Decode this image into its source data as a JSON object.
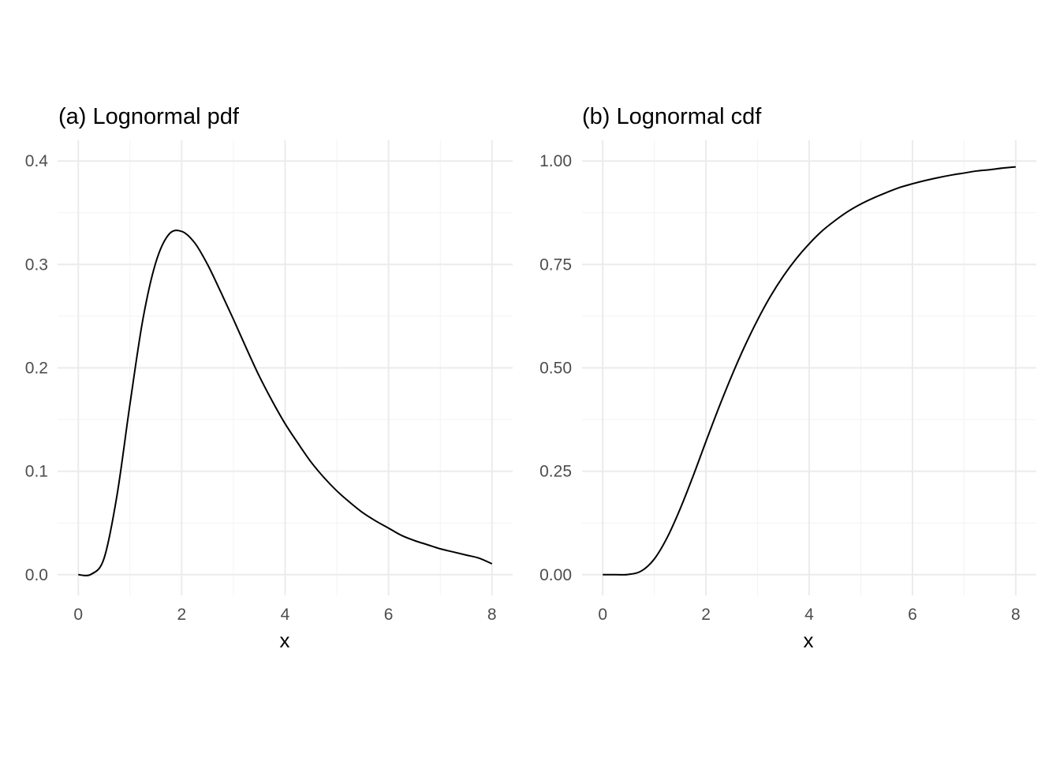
{
  "chart_data": [
    {
      "type": "line",
      "title": "(a) Lognormal pdf",
      "xlabel": "x",
      "ylabel": "",
      "xlim": [
        -0.4,
        8.4
      ],
      "ylim": [
        -0.02,
        0.42
      ],
      "x_ticks": [
        0,
        2,
        4,
        6,
        8
      ],
      "x_tick_labels": [
        "0",
        "2",
        "4",
        "6",
        "8"
      ],
      "y_ticks": [
        0,
        0.1,
        0.2,
        0.3,
        0.4
      ],
      "y_tick_labels": [
        "0.0",
        "0.1",
        "0.2",
        "0.3",
        "0.4"
      ],
      "grid": true,
      "series": [
        {
          "x": [
            0,
            0.25,
            0.5,
            0.75,
            1.0,
            1.25,
            1.5,
            1.75,
            2.0,
            2.25,
            2.5,
            2.75,
            3.0,
            3.25,
            3.5,
            3.75,
            4.0,
            4.25,
            4.5,
            4.75,
            5.0,
            5.25,
            5.5,
            5.75,
            6.0,
            6.25,
            6.5,
            6.75,
            7.0,
            7.25,
            7.5,
            7.75,
            8.0
          ],
          "y": [
            0,
            0.0004,
            0.016,
            0.077,
            0.165,
            0.247,
            0.302,
            0.329,
            0.332,
            0.321,
            0.3,
            0.274,
            0.247,
            0.219,
            0.192,
            0.168,
            0.146,
            0.127,
            0.109,
            0.094,
            0.081,
            0.07,
            0.06,
            0.052,
            0.045,
            0.038,
            0.033,
            0.029,
            0.025,
            0.022,
            0.019,
            0.016,
            0.0105
          ]
        }
      ]
    },
    {
      "type": "line",
      "title": "(b) Lognormal cdf",
      "xlabel": "x",
      "ylabel": "",
      "xlim": [
        -0.4,
        8.4
      ],
      "ylim": [
        -0.05,
        1.05
      ],
      "x_ticks": [
        0,
        2,
        4,
        6,
        8
      ],
      "x_tick_labels": [
        "0",
        "2",
        "4",
        "6",
        "8"
      ],
      "y_ticks": [
        0,
        0.25,
        0.5,
        0.75,
        1.0
      ],
      "y_tick_labels": [
        "0.00",
        "0.25",
        "0.50",
        "0.75",
        "1.00"
      ],
      "grid": true,
      "series": [
        {
          "x": [
            0,
            0.25,
            0.5,
            0.75,
            1.0,
            1.25,
            1.5,
            1.75,
            2.0,
            2.25,
            2.5,
            2.75,
            3.0,
            3.25,
            3.5,
            3.75,
            4.0,
            4.25,
            4.5,
            4.75,
            5.0,
            5.25,
            5.5,
            5.75,
            6.0,
            6.25,
            6.5,
            6.75,
            7.0,
            7.25,
            7.5,
            7.75,
            8.0
          ],
          "y": [
            0,
            1e-05,
            0.0006,
            0.009,
            0.038,
            0.09,
            0.159,
            0.238,
            0.322,
            0.404,
            0.481,
            0.552,
            0.616,
            0.673,
            0.722,
            0.764,
            0.8,
            0.831,
            0.856,
            0.878,
            0.896,
            0.911,
            0.924,
            0.936,
            0.945,
            0.953,
            0.96,
            0.966,
            0.971,
            0.976,
            0.979,
            0.983,
            0.986
          ]
        }
      ]
    }
  ]
}
